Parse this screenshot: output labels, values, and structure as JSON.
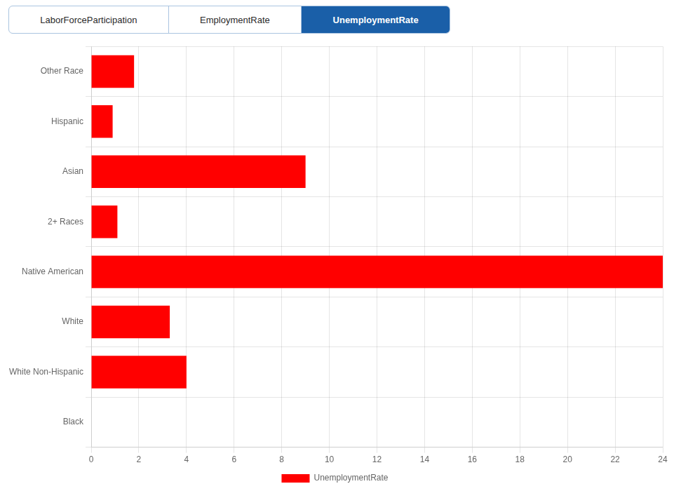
{
  "chart_data": {
    "type": "bar",
    "orientation": "horizontal",
    "categories": [
      "Other Race",
      "Hispanic",
      "Asian",
      "2+ Races",
      "Native American",
      "White",
      "White Non-Hispanic",
      "Black"
    ],
    "series": [
      {
        "name": "UnemploymentRate",
        "color": "#ff0000",
        "values": [
          1.8,
          0.9,
          9.0,
          1.1,
          24.0,
          3.3,
          4.0,
          0.0
        ]
      }
    ],
    "xlim": [
      0,
      24
    ],
    "xticks": [
      0,
      2,
      4,
      6,
      8,
      10,
      12,
      14,
      16,
      18,
      20,
      22,
      24
    ],
    "grid": true,
    "legend": "bottom",
    "annotations": [
      "LaborForceParticipation",
      "EmploymentRate",
      "UnemploymentRate"
    ]
  }
}
